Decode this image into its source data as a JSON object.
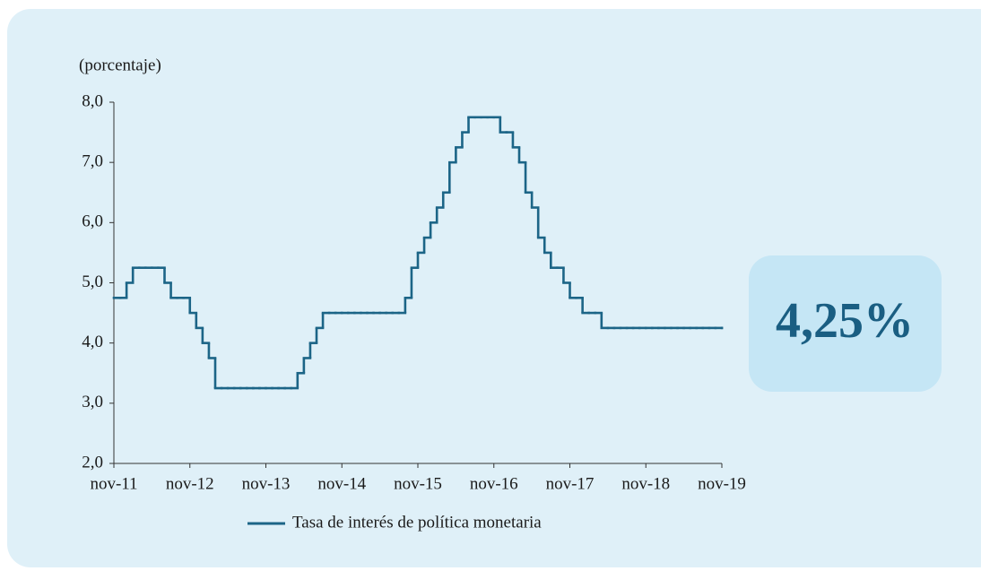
{
  "chart_data": {
    "type": "line",
    "step": true,
    "y_label": "(porcentaje)",
    "callout": "4,25%",
    "categories": [
      "nov-11",
      null,
      null,
      null,
      null,
      null,
      null,
      null,
      null,
      null,
      null,
      null,
      "nov-12",
      null,
      null,
      null,
      null,
      null,
      null,
      null,
      null,
      null,
      null,
      null,
      "nov-13",
      null,
      null,
      null,
      null,
      null,
      null,
      null,
      null,
      null,
      null,
      null,
      "nov-14",
      null,
      null,
      null,
      null,
      null,
      null,
      null,
      null,
      null,
      null,
      null,
      "nov-15",
      null,
      null,
      null,
      null,
      null,
      null,
      null,
      null,
      null,
      null,
      null,
      "nov-16",
      null,
      null,
      null,
      null,
      null,
      null,
      null,
      null,
      null,
      null,
      null,
      "nov-17",
      null,
      null,
      null,
      null,
      null,
      null,
      null,
      null,
      null,
      null,
      null,
      "nov-18",
      null,
      null,
      null,
      null,
      null,
      null,
      null,
      null,
      null,
      null,
      null,
      "nov-19"
    ],
    "series": [
      {
        "name": "Tasa de interés de política monetaria",
        "color": "#1c6587",
        "values": [
          4.75,
          4.75,
          5.0,
          5.25,
          5.25,
          5.25,
          5.25,
          5.25,
          5.0,
          4.75,
          4.75,
          4.75,
          4.5,
          4.25,
          4.0,
          3.75,
          3.25,
          3.25,
          3.25,
          3.25,
          3.25,
          3.25,
          3.25,
          3.25,
          3.25,
          3.25,
          3.25,
          3.25,
          3.25,
          3.5,
          3.75,
          4.0,
          4.25,
          4.5,
          4.5,
          4.5,
          4.5,
          4.5,
          4.5,
          4.5,
          4.5,
          4.5,
          4.5,
          4.5,
          4.5,
          4.5,
          4.75,
          5.25,
          5.5,
          5.75,
          6.0,
          6.25,
          6.5,
          7.0,
          7.25,
          7.5,
          7.75,
          7.75,
          7.75,
          7.75,
          7.75,
          7.5,
          7.5,
          7.25,
          7.0,
          6.5,
          6.25,
          5.75,
          5.5,
          5.25,
          5.25,
          5.0,
          4.75,
          4.75,
          4.5,
          4.5,
          4.5,
          4.25,
          4.25,
          4.25,
          4.25,
          4.25,
          4.25,
          4.25,
          4.25,
          4.25,
          4.25,
          4.25,
          4.25,
          4.25,
          4.25,
          4.25,
          4.25,
          4.25,
          4.25,
          4.25,
          4.25
        ]
      }
    ],
    "ylim": [
      2,
      8
    ],
    "yticks": [
      {
        "value": 2,
        "label": "2,0"
      },
      {
        "value": 3,
        "label": "3,0"
      },
      {
        "value": 4,
        "label": "4,0"
      },
      {
        "value": 5,
        "label": "5,0"
      },
      {
        "value": 6,
        "label": "6,0"
      },
      {
        "value": 7,
        "label": "7,0"
      },
      {
        "value": 8,
        "label": "8,0"
      }
    ],
    "grid": false
  }
}
